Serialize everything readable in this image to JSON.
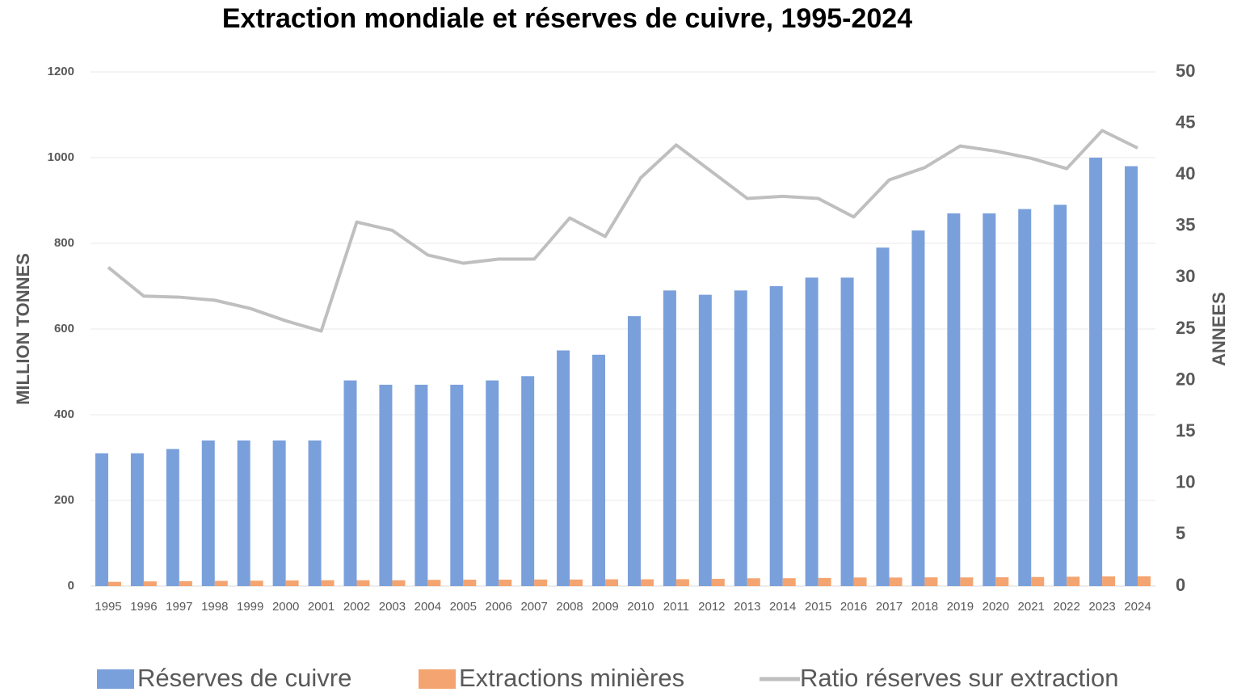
{
  "chart_data": {
    "type": "bar",
    "title": "Extraction mondiale et réserves de cuivre, 1995-2024",
    "y_label": "MILLION TONNES",
    "y2_label": "ANNEES",
    "categories": [
      "1995",
      "1996",
      "1997",
      "1998",
      "1999",
      "2000",
      "2001",
      "2002",
      "2003",
      "2004",
      "2005",
      "2006",
      "2007",
      "2008",
      "2009",
      "2010",
      "2011",
      "2012",
      "2013",
      "2014",
      "2015",
      "2016",
      "2017",
      "2018",
      "2019",
      "2020",
      "2021",
      "2022",
      "2023",
      "2024"
    ],
    "series": [
      {
        "name": "Réserves de cuivre",
        "type": "bar",
        "color": "#7aa0db",
        "values": [
          310,
          310,
          320,
          340,
          340,
          340,
          340,
          480,
          470,
          470,
          470,
          480,
          490,
          550,
          540,
          630,
          690,
          680,
          690,
          700,
          720,
          720,
          790,
          830,
          870,
          870,
          880,
          890,
          1000,
          980
        ]
      },
      {
        "name": "Extractions minières",
        "type": "bar",
        "color": "#f4a470",
        "values": [
          10,
          11,
          11.4,
          12.2,
          12.6,
          13.2,
          13.7,
          13.6,
          13.6,
          14.6,
          15,
          15.1,
          15.4,
          15.4,
          15.9,
          15.9,
          16.1,
          16.9,
          18.3,
          18.5,
          19.1,
          20.1,
          20,
          20.4,
          20.3,
          20.6,
          21.2,
          21.9,
          22.6,
          23
        ]
      },
      {
        "name": "Ratio réserves sur extraction",
        "type": "line",
        "axis": "y2",
        "color": "#bfbfbf",
        "values": [
          31.0,
          28.2,
          28.1,
          27.8,
          27.0,
          25.8,
          24.8,
          35.4,
          34.6,
          32.2,
          31.4,
          31.8,
          31.8,
          35.8,
          34.0,
          39.7,
          42.9,
          40.3,
          37.7,
          37.9,
          37.7,
          35.9,
          39.5,
          40.7,
          42.8,
          42.3,
          41.6,
          40.6,
          44.3,
          42.6
        ]
      }
    ],
    "ylim": [
      0,
      1200
    ],
    "yticks": [
      0,
      200,
      400,
      600,
      800,
      1000,
      1200
    ],
    "y2lim": [
      0,
      50
    ],
    "y2ticks": [
      0,
      5,
      10,
      15,
      20,
      25,
      30,
      35,
      40,
      45,
      50
    ],
    "grid": true,
    "legend": "bottom"
  }
}
